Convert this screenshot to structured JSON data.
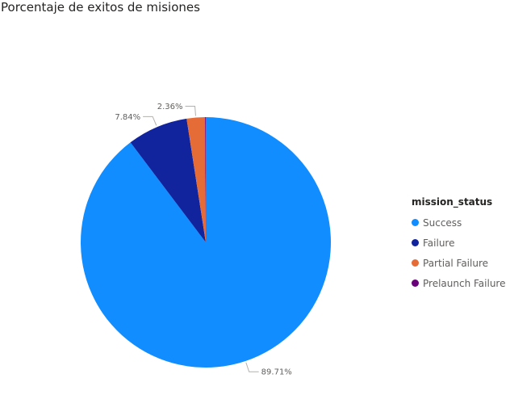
{
  "chart_data": {
    "type": "pie",
    "title": "Porcentaje de exitos de misiones",
    "legend_title": "mission_status",
    "legend_position": "right",
    "slices": [
      {
        "label": "Success",
        "value": 89.71,
        "data_label": "89.71%",
        "color": "#118DFF"
      },
      {
        "label": "Failure",
        "value": 7.84,
        "data_label": "7.84%",
        "color": "#12239E"
      },
      {
        "label": "Partial Failure",
        "value": 2.36,
        "data_label": "2.36%",
        "color": "#E66C37"
      },
      {
        "label": "Prelaunch Failure",
        "value": 0.09,
        "data_label": "",
        "color": "#6B007B"
      }
    ]
  }
}
